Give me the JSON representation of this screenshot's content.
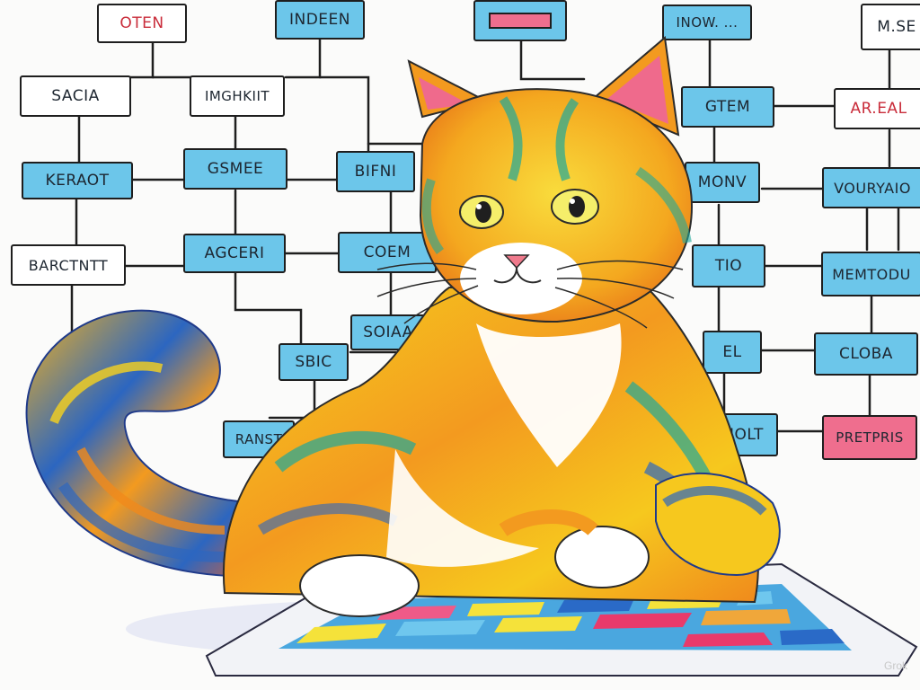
{
  "nodes": [
    {
      "id": "n0",
      "label": "OTEN",
      "style": "white red-text"
    },
    {
      "id": "n1",
      "label": "INDEEN",
      "style": "blue"
    },
    {
      "id": "n2",
      "label": "",
      "style": "blue"
    },
    {
      "id": "n3",
      "label": "INOW. ...",
      "style": "blue"
    },
    {
      "id": "n4",
      "label": "M.SE",
      "style": "white"
    },
    {
      "id": "n5",
      "label": "SACIA",
      "style": "white"
    },
    {
      "id": "n6",
      "label": "IMGHKIIT",
      "style": "white"
    },
    {
      "id": "n7",
      "label": "GTEM",
      "style": "blue"
    },
    {
      "id": "n8",
      "label": "AR.EAL",
      "style": "white red-text"
    },
    {
      "id": "n9",
      "label": "KERAOT",
      "style": "blue"
    },
    {
      "id": "n10",
      "label": "GSMEE",
      "style": "blue"
    },
    {
      "id": "n11",
      "label": "BIFNI",
      "style": "blue"
    },
    {
      "id": "n12",
      "label": "MONV",
      "style": "blue"
    },
    {
      "id": "n13",
      "label": "VOURYAIO",
      "style": "blue"
    },
    {
      "id": "n14",
      "label": "BARCTNTT",
      "style": "white"
    },
    {
      "id": "n15",
      "label": "AGCERI",
      "style": "blue"
    },
    {
      "id": "n16",
      "label": "COEM",
      "style": "blue"
    },
    {
      "id": "n17",
      "label": "TIO",
      "style": "blue"
    },
    {
      "id": "n18",
      "label": "MEMTODU",
      "style": "blue"
    },
    {
      "id": "n19",
      "label": "SOIAA",
      "style": "blue"
    },
    {
      "id": "n20",
      "label": "SBIC",
      "style": "blue"
    },
    {
      "id": "n21",
      "label": "EL",
      "style": "blue"
    },
    {
      "id": "n22",
      "label": "CLOBA",
      "style": "blue"
    },
    {
      "id": "n23",
      "label": "RANST",
      "style": "blue"
    },
    {
      "id": "n24",
      "label": "IOLT",
      "style": "blue"
    },
    {
      "id": "n25",
      "label": "PRETPRIS",
      "style": "pink"
    }
  ],
  "watermark": "Grok",
  "colors": {
    "node_blue": "#6cc6ea",
    "node_pink": "#ef6e8e",
    "fur_yellow": "#f6c81e",
    "fur_orange": "#f08a1c",
    "fur_blue": "#2c66c0",
    "fur_teal": "#20a89a"
  }
}
